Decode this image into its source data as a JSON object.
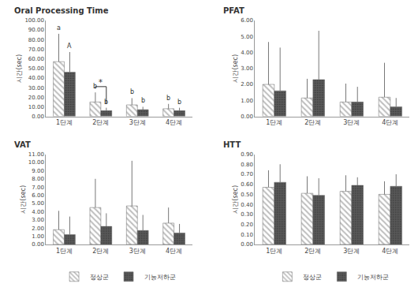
{
  "chart_data": [
    {
      "type": "bar",
      "title": "Oral Processing Time",
      "y_label": "시간(sec)",
      "categories": [
        "1단계",
        "2단계",
        "3단계",
        "4단계"
      ],
      "series": [
        {
          "name": "정상군",
          "color": "#bdbdbd",
          "values": [
            57,
            15,
            12,
            8
          ],
          "errors": [
            29,
            10,
            7,
            5
          ]
        },
        {
          "name": "기능저하군",
          "color": "#595959",
          "values": [
            46,
            6,
            7,
            6
          ],
          "errors": [
            21,
            3,
            3,
            3
          ]
        }
      ],
      "ylim": [
        0,
        100
      ],
      "yticks": [
        {
          "value": 0,
          "label": "0.00"
        },
        {
          "value": 10,
          "label": "10.00"
        },
        {
          "value": 20,
          "label": "20.00"
        },
        {
          "value": 30,
          "label": "30.00"
        },
        {
          "value": 40,
          "label": "40.00"
        },
        {
          "value": 50,
          "label": "50.00"
        },
        {
          "value": 60,
          "label": "60.00"
        },
        {
          "value": 70,
          "label": "70.00"
        },
        {
          "value": 80,
          "label": "80.00"
        },
        {
          "value": 90,
          "label": "90.00"
        },
        {
          "value": 100,
          "label": "100.00"
        }
      ],
      "grid": false,
      "annotations": [
        {
          "text": "a",
          "category": "1단계",
          "series": "정상군"
        },
        {
          "text": "A",
          "category": "1단계",
          "series": "기능저하군"
        },
        {
          "text": "b",
          "category": "2단계",
          "series": "정상군"
        },
        {
          "text": "b",
          "category": "2단계",
          "series": "기능저하군"
        },
        {
          "text": "b",
          "category": "3단계",
          "series": "정상군"
        },
        {
          "text": "b",
          "category": "3단계",
          "series": "기능저하군"
        },
        {
          "text": "b",
          "category": "4단계",
          "series": "정상군"
        },
        {
          "text": "b",
          "category": "4단계",
          "series": "기능저하군"
        },
        {
          "text": "*",
          "category": "2단계"
        }
      ]
    },
    {
      "type": "bar",
      "title": "PFAT",
      "y_label": "시간(sec)",
      "categories": [
        "1단계",
        "2단계",
        "3단계",
        "4단계"
      ],
      "series": [
        {
          "name": "정상군",
          "color": "#bdbdbd",
          "values": [
            2.0,
            1.15,
            0.9,
            1.2
          ],
          "errors": [
            2.65,
            1.2,
            1.15,
            2.15
          ]
        },
        {
          "name": "기능저하군",
          "color": "#595959",
          "values": [
            1.6,
            2.3,
            0.9,
            0.6
          ],
          "errors": [
            2.7,
            3.05,
            0.95,
            0.55
          ]
        }
      ],
      "ylim": [
        0,
        6
      ],
      "yticks": [
        {
          "value": 0,
          "label": "0.00"
        },
        {
          "value": 1,
          "label": "1.00"
        },
        {
          "value": 2,
          "label": "2.00"
        },
        {
          "value": 3,
          "label": "3.00"
        },
        {
          "value": 4,
          "label": "4.00"
        },
        {
          "value": 5,
          "label": "5.00"
        },
        {
          "value": 6,
          "label": "6.00"
        }
      ],
      "grid": false
    },
    {
      "type": "bar",
      "title": "VAT",
      "y_label": "시간(sec)",
      "categories": [
        "1단계",
        "2단계",
        "3단계",
        "4단계"
      ],
      "series": [
        {
          "name": "정상군",
          "color": "#bdbdbd",
          "values": [
            1.8,
            4.5,
            4.7,
            2.6
          ],
          "errors": [
            2.3,
            3.5,
            5.5,
            1.9
          ]
        },
        {
          "name": "기능저하군",
          "color": "#595959",
          "values": [
            1.2,
            2.2,
            1.7,
            1.4
          ],
          "errors": [
            2.2,
            1.6,
            1.9,
            1.1
          ]
        }
      ],
      "ylim": [
        0,
        11
      ],
      "yticks": [
        {
          "value": 0,
          "label": "0.00"
        },
        {
          "value": 1,
          "label": "1.00"
        },
        {
          "value": 2,
          "label": "2.00"
        },
        {
          "value": 3,
          "label": "3.00"
        },
        {
          "value": 4,
          "label": "4.00"
        },
        {
          "value": 5,
          "label": "5.00"
        },
        {
          "value": 6,
          "label": "6.00"
        },
        {
          "value": 7,
          "label": "7.00"
        },
        {
          "value": 8,
          "label": "8.00"
        },
        {
          "value": 9,
          "label": "9.00"
        },
        {
          "value": 10,
          "label": "10.00"
        },
        {
          "value": 11,
          "label": "11.00"
        }
      ],
      "grid": false,
      "legend": "bottom"
    },
    {
      "type": "bar",
      "title": "HTT",
      "y_label": "시간(sec)",
      "categories": [
        "1단계",
        "2단계",
        "3단계",
        "4단계"
      ],
      "series": [
        {
          "name": "정상군",
          "color": "#bdbdbd",
          "values": [
            0.57,
            0.51,
            0.53,
            0.5
          ],
          "errors": [
            0.17,
            0.17,
            0.16,
            0.13
          ]
        },
        {
          "name": "기능저하군",
          "color": "#595959",
          "values": [
            0.62,
            0.49,
            0.59,
            0.58
          ],
          "errors": [
            0.18,
            0.17,
            0.08,
            0.12
          ]
        }
      ],
      "ylim": [
        0,
        0.9
      ],
      "yticks": [
        {
          "value": 0,
          "label": "0.00"
        },
        {
          "value": 0.1,
          "label": "0.10"
        },
        {
          "value": 0.2,
          "label": "0.20"
        },
        {
          "value": 0.3,
          "label": "0.30"
        },
        {
          "value": 0.4,
          "label": "0.40"
        },
        {
          "value": 0.5,
          "label": "0.50"
        },
        {
          "value": 0.6,
          "label": "0.60"
        },
        {
          "value": 0.7,
          "label": "0.70"
        },
        {
          "value": 0.8,
          "label": "0.80"
        },
        {
          "value": 0.9,
          "label": "0.90"
        }
      ],
      "grid": false,
      "legend": "bottom"
    }
  ]
}
